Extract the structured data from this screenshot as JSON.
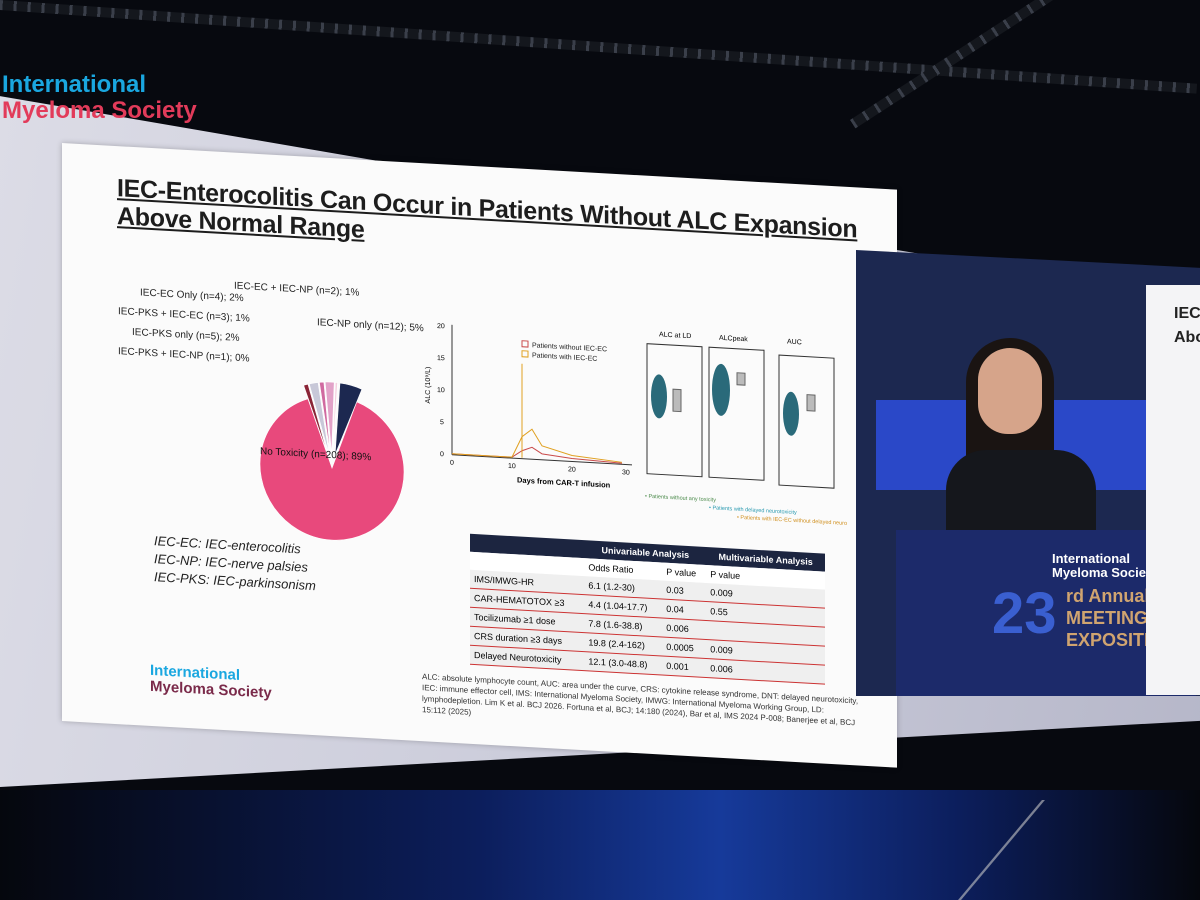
{
  "screen_logo": {
    "line1": "International",
    "line2": "Myeloma Society"
  },
  "slide": {
    "title_line1": "IEC-Enterocolitis Can Occur in Patients Without ALC Expansion",
    "title_line2": "Above Normal Range",
    "pie_labels": [
      "IEC-EC + IEC-NP (n=2); 1%",
      "IEC-EC Only (n=4); 2%",
      "IEC-PKS + IEC-EC (n=3); 1%",
      "IEC-PKS only (n=5); 2%",
      "IEC-PKS + IEC-NP (n=1); 0%",
      "IEC-NP only (n=12); 5%",
      "No Toxicity (n=208); 89%"
    ],
    "pie_fractions": [
      0.89,
      0.01,
      0.02,
      0.01,
      0.02,
      0.005,
      0.05
    ],
    "pie_colors": [
      "#e8497c",
      "#8a2436",
      "#c8c8d8",
      "#d06aa0",
      "#e2a2c8",
      "#f4d0e0",
      "#1c2850"
    ],
    "legend": [
      "IEC-EC: IEC-enterocolitis",
      "IEC-NP: IEC-nerve palsies",
      "IEC-PKS: IEC-parkinsonism"
    ],
    "line_chart": {
      "ylabel": "ALC (10⁹/L)",
      "xlabel": "Days from CAR-T infusion",
      "yticks": [
        "0",
        "5",
        "10",
        "15",
        "20"
      ],
      "xticks": [
        "0",
        "10",
        "20",
        "30"
      ],
      "series": [
        {
          "name": "Patients without IEC-EC",
          "color": "#c94a4a"
        },
        {
          "name": "Patients with IEC-EC",
          "color": "#e0a020"
        }
      ]
    },
    "box_titles": [
      "ALC at LD",
      "ALCpeak",
      "AUC"
    ],
    "box_legend": [
      "• Patients without any toxicity",
      "• Patients with delayed neurotoxicity",
      "• Patients with IEC-EC without delayed neurotoxicity"
    ],
    "table": {
      "header1": [
        "",
        "Univariable Analysis",
        "Multivariable Analysis"
      ],
      "header2": [
        "",
        "Odds Ratio",
        "P value",
        "P value"
      ],
      "rows": [
        [
          "IMS/IMWG-HR",
          "6.1 (1.2-30)",
          "0.03",
          "0.009"
        ],
        [
          "CAR-HEMATOTOX ≥3",
          "4.4 (1.04-17.7)",
          "0.04",
          "0.55"
        ],
        [
          "Tocilizumab ≥1 dose",
          "7.8 (1.6-38.8)",
          "0.006",
          ""
        ],
        [
          "CRS duration ≥3 days",
          "19.8 (2.4-162)",
          "0.0005",
          "0.009"
        ],
        [
          "Delayed Neurotoxicity",
          "12.1 (3.0-48.8)",
          "0.001",
          "0.006"
        ]
      ]
    },
    "footnote": "ALC: absolute lymphocyte count, AUC: area under the curve, CRS: cytokine release syndrome, DNT: delayed neurotoxicity, IEC: immune effector cell, IMS: International Myeloma Society, IMWG: International Myeloma Working Group, LD: lymphodepletion. Lim K et al. BCJ 2026. Fortuna et al, BCJ; 14:180 (2024), Bar et al, IMS 2024 P-008; Banerjee et al, BCJ 15:112 (2025)",
    "logo": {
      "line1": "International",
      "line2": "Myeloma Society"
    }
  },
  "video": {
    "podium_logo": {
      "line1": "International",
      "line2": "Myeloma Society"
    },
    "big_number": "23",
    "event_lines": [
      "rd Annual",
      "MEETING &",
      "EXPOSITION"
    ]
  },
  "right_slide": {
    "lines": [
      "IEC",
      "Abo"
    ]
  }
}
